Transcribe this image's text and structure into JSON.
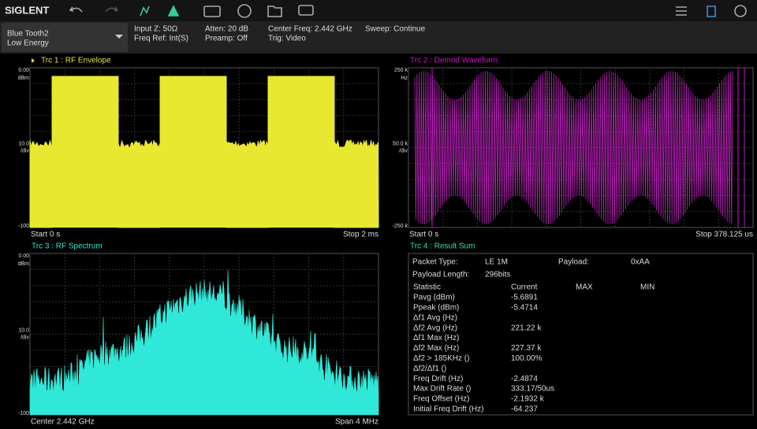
{
  "toolbar": {
    "brand": "SIGLENT"
  },
  "status": {
    "mode": [
      "Blue Tooth2",
      "Low Energy"
    ],
    "columns": [
      [
        "Input Z: 50Ω",
        "Freq Ref: Int(S)"
      ],
      [
        "Atten: 20 dB",
        "Preamp: Off"
      ],
      [
        "Center Freq: 2.442 GHz",
        "Trig: Video"
      ],
      [
        "Sweep: Continue"
      ]
    ]
  },
  "traces": [
    {
      "title": "Trc 1 :  RF Envelope",
      "ref": "0.00",
      "ref_unit": "dBm",
      "scale": "10.0",
      "scale_unit": "/div",
      "bottom": "-100",
      "start": "Start 0 s",
      "stop": "Stop 2 ms"
    },
    {
      "title": "Trc 2 :  Demod Waveform",
      "ref": "250 k",
      "ref_unit": "Hz",
      "scale": "50.0 k",
      "scale_unit": "/div",
      "bottom": "-250 k",
      "start": "Start 0 s",
      "stop": "Stop 378.125 us"
    },
    {
      "title": "Trc 3 :  RF Spectrum",
      "ref": "0.00",
      "ref_unit": "dBm",
      "scale": "10.0",
      "scale_unit": "/div",
      "bottom": "-100",
      "start": "Center 2.442 GHz",
      "stop": "Span 4 MHz"
    }
  ],
  "result": {
    "title": "Trc 4 :  Result Sum",
    "info": [
      [
        "Packet Type:",
        "LE 1M",
        "Payload:",
        "0xAA"
      ],
      [
        "Payload Length:",
        "296bits"
      ]
    ],
    "header": [
      "Statistic",
      "Current",
      "MAX",
      "MIN"
    ],
    "rows": [
      [
        "Pavg (dBm)",
        "-5.6891"
      ],
      [
        "Ppeak (dBm)",
        "-5.4714"
      ],
      [
        "Δf1 Avg (Hz)"
      ],
      [
        "Δf2 Avg (Hz)",
        "221.22 k"
      ],
      [
        "Δf1 Max (Hz)"
      ],
      [
        "Δf2 Max (Hz)",
        "227.37 k"
      ],
      [
        "Δf2 > 185KHz ()",
        "100.00%"
      ],
      [
        "Δf2/Δf1 ()"
      ],
      [
        "Freq Drift (Hz)",
        "-2.4874"
      ],
      [
        "Max Drift Rate ()",
        "333.17/50us"
      ],
      [
        "Freq Offset (Hz)",
        "-2.1932 k"
      ],
      [
        "Initial Freq Drift (Hz)",
        "-64.237"
      ]
    ]
  }
}
